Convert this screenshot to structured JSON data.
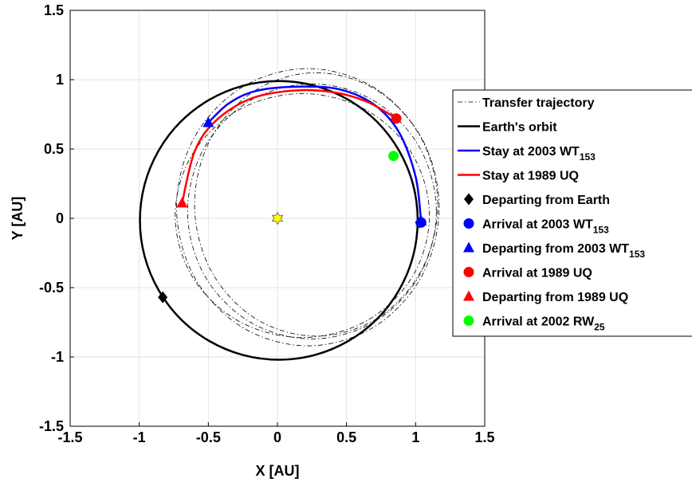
{
  "chart_data": {
    "type": "orbit",
    "xlabel": "X  [AU]",
    "ylabel": "Y  [AU]",
    "xlim": [
      -1.5,
      1.5
    ],
    "ylim": [
      -1.5,
      1.5
    ],
    "xticks": [
      -1.5,
      -1,
      -0.5,
      0,
      0.5,
      1,
      1.5
    ],
    "yticks": [
      -1.5,
      -1,
      -0.5,
      0,
      0.5,
      1,
      1.5
    ],
    "grid": true,
    "legend": "right",
    "series": [
      {
        "name": "Transfer trajectory",
        "kind": "curve",
        "closed": true,
        "color": "#000000",
        "style": "dashdot",
        "curves": [
          {
            "x": [
              1.17,
              1.043,
              0.695,
              0.22,
              -0.255,
              -0.603,
              -0.73,
              -0.603,
              -0.255,
              0.22,
              0.695,
              1.043
            ],
            "y": [
              0.08,
              0.58,
              0.946,
              1.08,
              0.946,
              0.58,
              0.08,
              -0.42,
              -0.786,
              -0.92,
              -0.786,
              -0.42
            ]
          },
          {
            "x": [
              1.15,
              1.029,
              0.7,
              0.25,
              -0.2,
              -0.529,
              -0.65,
              -0.529,
              -0.2,
              0.25,
              0.7,
              1.029
            ],
            "y": [
              0.05,
              0.51,
              0.847,
              0.97,
              0.847,
              0.51,
              0.05,
              -0.41,
              -0.747,
              -0.87,
              -0.747,
              -0.41
            ]
          },
          {
            "x": [
              1.1,
              0.977,
              0.64,
              0.18,
              -0.28,
              -0.617,
              -0.74,
              -0.617,
              -0.28,
              0.18,
              0.64,
              0.977
            ],
            "y": [
              0.02,
              0.46,
              0.782,
              0.9,
              0.782,
              0.46,
              0.02,
              -0.42,
              -0.742,
              -0.86,
              -0.742,
              -0.42
            ]
          },
          {
            "x": [
              1.16,
              1.042,
              0.72,
              0.28,
              -0.16,
              -0.482,
              -0.6,
              -0.482,
              -0.16,
              0.28,
              0.72,
              1.042
            ],
            "y": [
              0.1,
              0.575,
              0.923,
              1.05,
              0.923,
              0.575,
              0.1,
              -0.375,
              -0.723,
              -0.85,
              -0.723,
              -0.375
            ]
          }
        ]
      },
      {
        "name": "Earth's orbit",
        "kind": "curve",
        "closed": true,
        "color": "#000000",
        "style": "solid",
        "curves": [
          {
            "x": [
              1.015,
              0.981,
              0.88,
              0.721,
              0.513,
              0.27,
              0.01,
              -0.25,
              -0.493,
              -0.701,
              -0.86,
              -0.961,
              -0.995,
              -0.961,
              -0.86,
              -0.701,
              -0.493,
              -0.25,
              0.01,
              0.27,
              0.513,
              0.721,
              0.88,
              0.981
            ],
            "y": [
              -0.015,
              0.245,
              0.488,
              0.696,
              0.855,
              0.956,
              0.99,
              0.956,
              0.855,
              0.696,
              0.488,
              0.245,
              -0.015,
              -0.275,
              -0.518,
              -0.726,
              -0.885,
              -0.986,
              -1.02,
              -0.986,
              -0.885,
              -0.726,
              -0.518,
              -0.275
            ]
          }
        ]
      },
      {
        "name": "Stay at 2003 WT",
        "name_sub": "153",
        "kind": "curve",
        "closed": false,
        "color": "#0000ff",
        "style": "solid",
        "curves": [
          {
            "x": [
              1.04,
              1.0,
              0.88,
              0.7,
              0.45,
              0.15,
              -0.15,
              -0.35,
              -0.5
            ],
            "y": [
              -0.03,
              0.3,
              0.62,
              0.82,
              0.93,
              0.95,
              0.92,
              0.83,
              0.69
            ]
          }
        ]
      },
      {
        "name": "Stay at 1989 UQ",
        "kind": "curve",
        "closed": false,
        "color": "#ff0000",
        "style": "solid",
        "curves": [
          {
            "x": [
              0.86,
              0.65,
              0.4,
              0.1,
              -0.2,
              -0.45,
              -0.6,
              -0.69
            ],
            "y": [
              0.72,
              0.84,
              0.91,
              0.92,
              0.86,
              0.7,
              0.48,
              0.11
            ]
          }
        ]
      },
      {
        "name": "Departing from Earth",
        "kind": "marker",
        "marker": "diamond",
        "color": "#000000",
        "x": [
          -0.83,
          1.03
        ],
        "y": [
          -0.57,
          -0.03
        ]
      },
      {
        "name": "Arrival at 2003 WT",
        "name_sub": "153",
        "kind": "marker",
        "marker": "circle",
        "color": "#0000ff",
        "x": [
          1.04
        ],
        "y": [
          -0.03
        ]
      },
      {
        "name": "Departing from 2003 WT",
        "name_sub": "153",
        "kind": "marker",
        "marker": "triangle",
        "color": "#0000ff",
        "x": [
          -0.5,
          1.04
        ],
        "y": [
          0.69,
          -0.02
        ]
      },
      {
        "name": "Arrival at 1989 UQ",
        "kind": "marker",
        "marker": "circle",
        "color": "#ff0000",
        "x": [
          0.86
        ],
        "y": [
          0.72
        ]
      },
      {
        "name": "Departing from 1989 UQ",
        "kind": "marker",
        "marker": "triangle",
        "color": "#ff0000",
        "x": [
          -0.69
        ],
        "y": [
          0.11
        ]
      },
      {
        "name": "Arrival at 2002 RW",
        "name_sub": "25",
        "kind": "marker",
        "marker": "circle",
        "color": "#00ff00",
        "x": [
          0.84
        ],
        "y": [
          0.45
        ]
      },
      {
        "kind": "marker",
        "marker": "hexagram",
        "color": "#ffff00",
        "x": [
          0
        ],
        "y": [
          0
        ]
      }
    ]
  }
}
